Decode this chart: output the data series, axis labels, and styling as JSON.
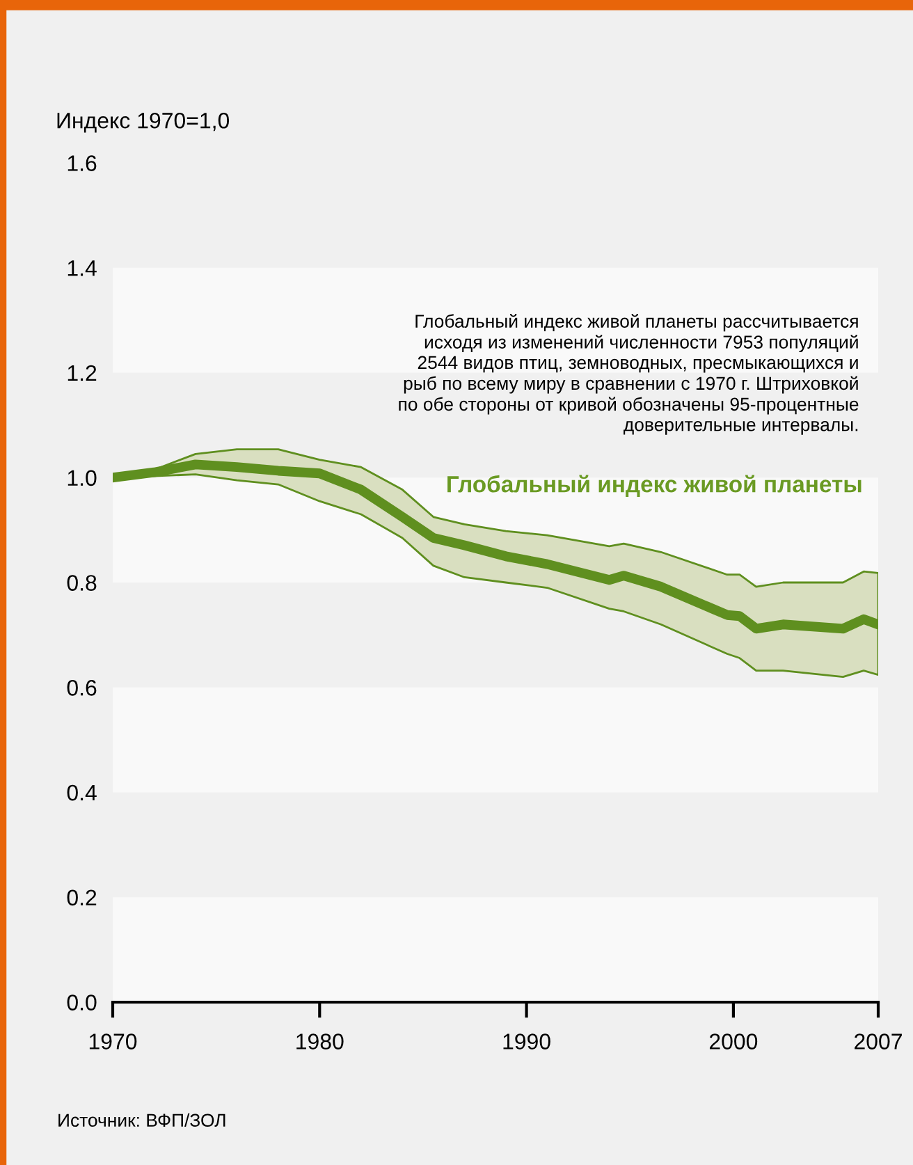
{
  "chart_data": {
    "type": "line",
    "ylabel": "Индекс 1970=1,0",
    "x": [
      1970,
      1972,
      1974,
      1976,
      1978,
      1980,
      1982,
      1984,
      1985.5,
      1987,
      1989,
      1991,
      1994,
      1994.7,
      1996.5,
      1999.7,
      2000.3,
      2001.1,
      2002.4,
      2005.3,
      2006.3,
      2007
    ],
    "series": [
      {
        "name": "Глобальный индекс живой планеты",
        "color": "#5f8f1f",
        "values": [
          1.0,
          1.01,
          1.025,
          1.02,
          1.013,
          1.008,
          0.977,
          0.925,
          0.885,
          0.871,
          0.85,
          0.835,
          0.805,
          0.813,
          0.792,
          0.738,
          0.736,
          0.712,
          0.72,
          0.712,
          0.73,
          0.72
        ],
        "upper": [
          1.0,
          1.015,
          1.045,
          1.054,
          1.054,
          1.034,
          1.02,
          0.977,
          0.925,
          0.911,
          0.898,
          0.89,
          0.869,
          0.874,
          0.858,
          0.815,
          0.815,
          0.792,
          0.8,
          0.8,
          0.821,
          0.818
        ],
        "lower": [
          1.0,
          1.003,
          1.006,
          0.995,
          0.987,
          0.955,
          0.93,
          0.885,
          0.832,
          0.81,
          0.8,
          0.79,
          0.75,
          0.745,
          0.72,
          0.664,
          0.656,
          0.632,
          0.632,
          0.62,
          0.632,
          0.624
        ]
      }
    ],
    "xlim": [
      1970,
      2007
    ],
    "xticks": [
      1970,
      1980,
      1990,
      2000,
      2007
    ],
    "ylim": [
      0,
      1.6
    ],
    "yticks": [
      {
        "value": 0,
        "label": "0.0"
      },
      {
        "value": 0.2,
        "label": "0.2"
      },
      {
        "value": 0.4,
        "label": "0.4"
      },
      {
        "value": 0.6,
        "label": "0.6"
      },
      {
        "value": 0.8,
        "label": "0.8"
      },
      {
        "value": 1.0,
        "label": "1.0"
      },
      {
        "value": 1.2,
        "label": "1.2"
      },
      {
        "value": 1.4,
        "label": "1.4"
      },
      {
        "value": 1.6,
        "label": "1.6"
      }
    ],
    "bands": [
      {
        "axis": "y",
        "from": 0,
        "to": 0.2,
        "color": "#f9f9f9"
      },
      {
        "axis": "y",
        "from": 0.4,
        "to": 0.6,
        "color": "#f9f9f9"
      },
      {
        "axis": "y",
        "from": 0.8,
        "to": 1.0,
        "color": "#f9f9f9"
      },
      {
        "axis": "y",
        "from": 1.2,
        "to": 1.4,
        "color": "#f9f9f9"
      }
    ],
    "legend": false,
    "marker": "none",
    "line_style": "solid",
    "annotations": [
      "Глобальный индекс живой планеты рассчитывается\nисходя из изменений численности 7953 популяций\n2544 видов птиц, земноводных, пресмыкающихся и\nрыб по всему миру в сравнении с 1970 г. Штриховкой\nпо обе стороны от кривой обозначены 95-процентные\nдоверительные интервалы.",
      "Источник: ВФП/ЗОЛ"
    ]
  }
}
